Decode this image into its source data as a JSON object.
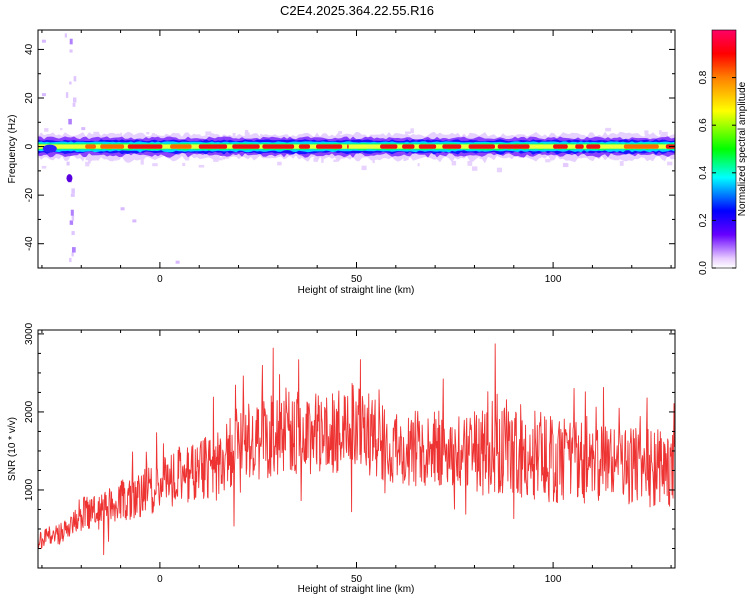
{
  "title": "C2E4.2025.364.22.55.R16",
  "chart_data": [
    {
      "type": "heatmap",
      "xlabel": "Height of straight line (km)",
      "ylabel": "Frequency (Hz)",
      "xlim": [
        -31,
        131
      ],
      "ylim": [
        -50,
        48
      ],
      "xticks": [
        0,
        50,
        100
      ],
      "yticks": [
        -40,
        -20,
        0,
        20,
        40
      ],
      "colorbar": {
        "label": "Normalized spectral amplitude",
        "range": [
          0,
          1
        ],
        "ticks": [
          0.0,
          0.2,
          0.4,
          0.6,
          0.8
        ],
        "tick_labels": [
          "0.0",
          "0.2",
          "0.4",
          "0.6",
          "0.8"
        ],
        "colors": [
          "#ffffff",
          "#6600ff",
          "#0000ff",
          "#00ffff",
          "#00ff00",
          "#ffff00",
          "#ff8000",
          "#ff0000",
          "#ff0066"
        ]
      },
      "band": {
        "center_hz": 0,
        "halfwidth_hz": 3,
        "strong_segments_km": [
          [
            -19,
            48
          ],
          [
            56,
            95
          ],
          [
            100,
            112
          ],
          [
            118,
            131
          ]
        ],
        "vertical_streak_km": -23,
        "vertical_streak_hz": [
          -48,
          48
        ]
      }
    },
    {
      "type": "line",
      "xlabel": "Height of straight line (km)",
      "ylabel": "SNR (10 * v/v)",
      "xlim": [
        -31,
        131
      ],
      "ylim": [
        0,
        3050
      ],
      "xticks": [
        0,
        50,
        100
      ],
      "yticks": [
        1000,
        2000,
        3000
      ],
      "color": "#ee3333",
      "series": [
        {
          "x": [
            -31,
            -25,
            -20,
            -15,
            -10,
            -5,
            0,
            5,
            10,
            15,
            20,
            25,
            30,
            35,
            40,
            45,
            50,
            55,
            60,
            65,
            70,
            75,
            80,
            85,
            90,
            95,
            100,
            105,
            110,
            115,
            120,
            125,
            131
          ],
          "y": [
            350,
            450,
            700,
            750,
            850,
            950,
            1050,
            1200,
            1250,
            1350,
            1550,
            1650,
            1700,
            1750,
            1700,
            1750,
            1800,
            1650,
            1550,
            1500,
            1550,
            1500,
            1550,
            1550,
            1550,
            1450,
            1400,
            1350,
            1300,
            1300,
            1300,
            1300,
            1250
          ]
        }
      ]
    }
  ]
}
